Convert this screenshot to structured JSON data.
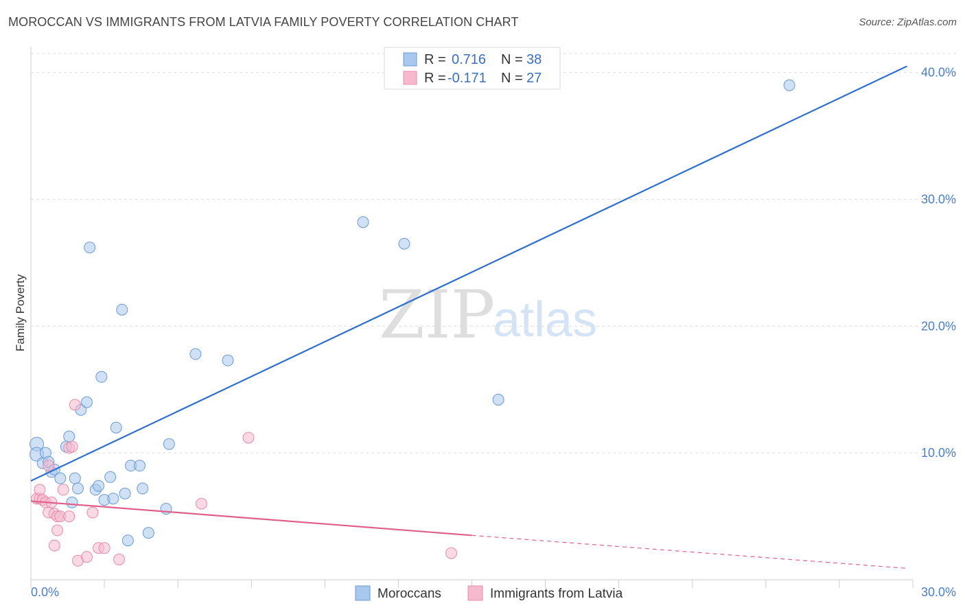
{
  "title": "MOROCCAN VS IMMIGRANTS FROM LATVIA FAMILY POVERTY CORRELATION CHART",
  "source": "Source: ZipAtlas.com",
  "watermark": {
    "part1": "ZIP",
    "part2": "atlas"
  },
  "chart_data": {
    "type": "scatter",
    "title": "MOROCCAN VS IMMIGRANTS FROM LATVIA FAMILY POVERTY CORRELATION CHART",
    "xlabel": "",
    "ylabel": "Family Poverty",
    "xlim": [
      0,
      30
    ],
    "ylim": [
      0,
      41.5
    ],
    "x_tick_labels": [
      "0.0%",
      "30.0%"
    ],
    "y_ticks": [
      10,
      20,
      30,
      40
    ],
    "y_tick_labels": [
      "10.0%",
      "20.0%",
      "30.0%",
      "40.0%"
    ],
    "legend": [
      {
        "r_label": "R =",
        "r_value": "0.716",
        "n_label": "N =",
        "n_value": "38"
      },
      {
        "r_label": "R =",
        "r_value": "-0.171",
        "n_label": "N =",
        "n_value": "27"
      }
    ],
    "series": [
      {
        "name": "Moroccans",
        "color": "#a9c8ee",
        "edge": "#6a9ad6",
        "line_color": "#2f6fd0",
        "trend": {
          "x0": 0,
          "y0": 7.8,
          "x1": 29.8,
          "y1": 40.5
        },
        "points": [
          [
            0.2,
            10.7
          ],
          [
            0.2,
            9.9
          ],
          [
            0.4,
            9.2
          ],
          [
            0.5,
            10.0
          ],
          [
            0.6,
            9.3
          ],
          [
            0.7,
            8.5
          ],
          [
            0.8,
            8.7
          ],
          [
            1.0,
            8.0
          ],
          [
            1.2,
            10.5
          ],
          [
            1.3,
            11.3
          ],
          [
            1.4,
            6.1
          ],
          [
            1.5,
            8.0
          ],
          [
            1.6,
            7.2
          ],
          [
            1.7,
            13.4
          ],
          [
            1.9,
            14.0
          ],
          [
            2.0,
            26.2
          ],
          [
            2.2,
            7.1
          ],
          [
            2.3,
            7.4
          ],
          [
            2.4,
            16.0
          ],
          [
            2.5,
            6.3
          ],
          [
            2.7,
            8.1
          ],
          [
            2.8,
            6.4
          ],
          [
            2.9,
            12.0
          ],
          [
            3.1,
            21.3
          ],
          [
            3.2,
            6.8
          ],
          [
            3.3,
            3.1
          ],
          [
            3.4,
            9.0
          ],
          [
            3.7,
            9.0
          ],
          [
            3.8,
            7.2
          ],
          [
            4.0,
            3.7
          ],
          [
            4.6,
            5.6
          ],
          [
            4.7,
            10.7
          ],
          [
            5.6,
            17.8
          ],
          [
            6.7,
            17.3
          ],
          [
            11.3,
            28.2
          ],
          [
            12.7,
            26.5
          ],
          [
            15.9,
            14.2
          ],
          [
            25.8,
            39.0
          ]
        ]
      },
      {
        "name": "Immigrants from Latvia",
        "color": "#f6b9cd",
        "edge": "#e88aa8",
        "line_color": "#e0608a",
        "trend": {
          "x0": 0,
          "y0": 6.2,
          "x1": 15.0,
          "y1": 3.5,
          "dash_x1": 29.8,
          "dash_y1": 0.9
        },
        "points": [
          [
            0.2,
            6.4
          ],
          [
            0.3,
            6.4
          ],
          [
            0.3,
            7.1
          ],
          [
            0.4,
            6.3
          ],
          [
            0.5,
            6.1
          ],
          [
            0.6,
            9.0
          ],
          [
            0.6,
            5.3
          ],
          [
            0.7,
            6.1
          ],
          [
            0.8,
            2.7
          ],
          [
            0.8,
            5.2
          ],
          [
            0.9,
            5.0
          ],
          [
            0.9,
            3.9
          ],
          [
            1.0,
            5.0
          ],
          [
            1.1,
            7.1
          ],
          [
            1.3,
            5.0
          ],
          [
            1.3,
            10.4
          ],
          [
            1.4,
            10.5
          ],
          [
            1.5,
            13.8
          ],
          [
            1.6,
            1.5
          ],
          [
            1.9,
            1.8
          ],
          [
            2.1,
            5.3
          ],
          [
            2.3,
            2.5
          ],
          [
            2.5,
            2.5
          ],
          [
            3.0,
            1.6
          ],
          [
            5.8,
            6.0
          ],
          [
            7.4,
            11.2
          ],
          [
            14.3,
            2.1
          ]
        ]
      }
    ]
  }
}
